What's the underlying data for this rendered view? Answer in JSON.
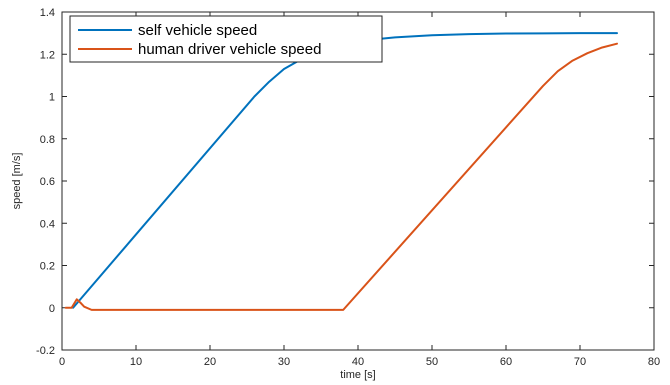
{
  "chart_data": {
    "type": "line",
    "xlabel": "time [s]",
    "ylabel": "speed [m/s]",
    "xlim": [
      0,
      80
    ],
    "ylim": [
      -0.2,
      1.4
    ],
    "x_ticks": [
      0,
      10,
      20,
      30,
      40,
      50,
      60,
      70,
      80
    ],
    "y_ticks": [
      -0.2,
      0,
      0.2,
      0.4,
      0.6,
      0.8,
      1,
      1.2,
      1.4
    ],
    "grid": false,
    "legend_position": "top-left",
    "series": [
      {
        "name": "self vehicle speed",
        "color": "#0072BD",
        "points": [
          [
            1.5,
            0
          ],
          [
            26,
            1.0
          ],
          [
            28,
            1.07
          ],
          [
            30,
            1.13
          ],
          [
            32,
            1.17
          ],
          [
            34,
            1.205
          ],
          [
            36,
            1.23
          ],
          [
            38,
            1.25
          ],
          [
            40,
            1.262
          ],
          [
            45,
            1.28
          ],
          [
            50,
            1.29
          ],
          [
            55,
            1.295
          ],
          [
            60,
            1.298
          ],
          [
            65,
            1.299
          ],
          [
            70,
            1.3
          ],
          [
            75,
            1.3
          ]
        ]
      },
      {
        "name": "human driver vehicle speed",
        "color": "#D95319",
        "points": [
          [
            0.5,
            0
          ],
          [
            1.3,
            0
          ],
          [
            2.0,
            0.04
          ],
          [
            2.6,
            0.02
          ],
          [
            3.0,
            0.005
          ],
          [
            4.0,
            -0.01
          ],
          [
            38,
            -0.01
          ],
          [
            65,
            1.05
          ],
          [
            67,
            1.12
          ],
          [
            69,
            1.17
          ],
          [
            71,
            1.205
          ],
          [
            73,
            1.232
          ],
          [
            75,
            1.25
          ]
        ]
      }
    ]
  }
}
